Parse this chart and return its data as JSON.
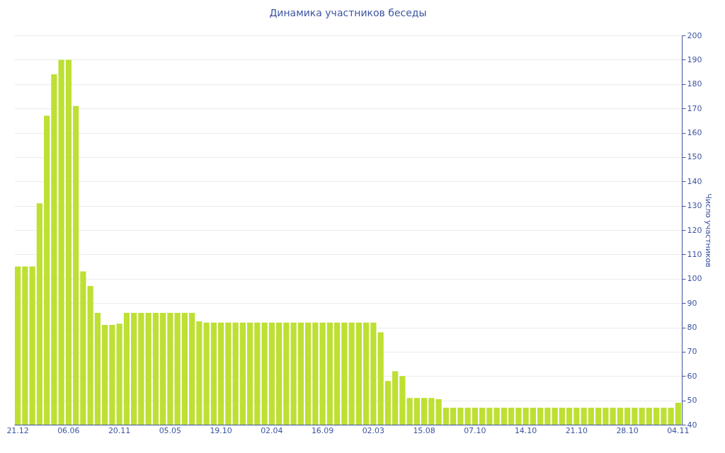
{
  "chart_data": {
    "type": "bar",
    "title": "Динамика участников беседы",
    "ylabel": "Число участников",
    "categories": [
      "21.12",
      null,
      null,
      null,
      null,
      null,
      null,
      "06.06",
      null,
      null,
      null,
      null,
      null,
      null,
      "20.11",
      null,
      null,
      null,
      null,
      null,
      null,
      "05.05",
      null,
      null,
      null,
      null,
      null,
      null,
      "19.10",
      null,
      null,
      null,
      null,
      null,
      null,
      "02.04",
      null,
      null,
      null,
      null,
      null,
      null,
      "16.09",
      null,
      null,
      null,
      null,
      null,
      null,
      "02.03",
      null,
      null,
      null,
      null,
      null,
      null,
      "15.08",
      null,
      null,
      null,
      null,
      null,
      null,
      "07.10",
      null,
      null,
      null,
      null,
      null,
      null,
      "14.10",
      null,
      null,
      null,
      null,
      null,
      null,
      "21.10",
      null,
      null,
      null,
      null,
      null,
      null,
      "28.10",
      null,
      null,
      null,
      null,
      null,
      null,
      "04.11"
    ],
    "values": [
      105,
      105,
      105,
      131,
      167,
      184,
      190,
      190,
      171,
      103,
      97,
      86,
      81,
      81,
      81.5,
      86,
      86,
      86,
      86,
      86,
      86,
      86,
      86,
      86,
      86,
      82.5,
      82,
      82,
      82,
      82,
      82,
      82,
      82,
      82,
      82,
      82,
      82,
      82,
      82,
      82,
      82,
      82,
      82,
      82,
      82,
      82,
      82,
      82,
      82,
      82,
      78,
      58,
      62,
      60,
      51,
      51,
      51,
      51,
      50.5,
      47,
      47,
      47,
      47,
      47,
      47,
      47,
      47,
      47,
      47,
      47,
      47,
      47,
      47,
      47,
      47,
      47,
      47,
      47,
      47,
      47,
      47,
      47,
      47,
      47,
      47,
      47,
      47,
      47,
      47,
      47,
      47,
      49
    ],
    "color": "#bde033",
    "ylim": [
      40,
      200
    ],
    "yticks": [
      40,
      50,
      60,
      70,
      80,
      90,
      100,
      110,
      120,
      130,
      140,
      150,
      160,
      170,
      180,
      190,
      200
    ],
    "grid": true
  }
}
